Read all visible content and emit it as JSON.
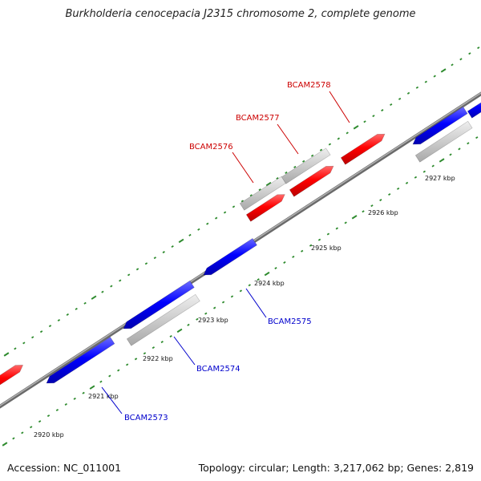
{
  "title": "Burkholderia cenocepacia J2315 chromosome 2, complete genome",
  "footer": {
    "accession": "Accession: NC_011001",
    "stats": "Topology: circular; Length: 3,217,062 bp; Genes: 2,819"
  },
  "colors": {
    "forward_gene": "#ff0000",
    "reverse_gene": "#0000ff",
    "other_feature": "#c8c8c8",
    "backbone": "#808080",
    "tick": "#2e8b2e",
    "forward_label": "#cc0000",
    "reverse_label": "#0000cc"
  },
  "chart_data": {
    "type": "genome-map",
    "scale_unit": "kbp",
    "tick_labels": [
      "2920 kbp",
      "2921 kbp",
      "2922 kbp",
      "2923 kbp",
      "2924 kbp",
      "2925 kbp",
      "2926 kbp",
      "2927 kbp"
    ],
    "genes": [
      {
        "label": "BCAM2573",
        "strand": "reverse"
      },
      {
        "label": "BCAM2574",
        "strand": "reverse"
      },
      {
        "label": "BCAM2575",
        "strand": "reverse"
      },
      {
        "label": "BCAM2576",
        "strand": "forward"
      },
      {
        "label": "BCAM2577",
        "strand": "forward"
      },
      {
        "label": "BCAM2578",
        "strand": "forward"
      }
    ]
  }
}
